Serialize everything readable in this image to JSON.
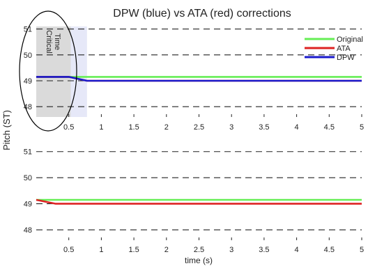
{
  "chart_data": [
    {
      "type": "line",
      "title": "DPW (blue) vs ATA (red) corrections",
      "ylabel_shared": "Pitch (ST)",
      "xlim": [
        0,
        5
      ],
      "ylim": [
        47.6,
        51.1
      ],
      "xticks": [
        0.5,
        1,
        1.5,
        2,
        2.5,
        3,
        3.5,
        4,
        4.5,
        5
      ],
      "xtick_labels": [
        "0.5",
        "1",
        "1.5",
        "2",
        "2.5",
        "3",
        "3.5",
        "4",
        "4.5",
        "5"
      ],
      "yticks": [
        48,
        49,
        50,
        51
      ],
      "ytick_labels": [
        "48",
        "49",
        "50",
        "51"
      ],
      "grid": "horizontal-dashed",
      "legend_position": "top-right",
      "annotation": {
        "text_line1": "Critical",
        "text_line2": "Time",
        "x_range": [
          0,
          0.78
        ]
      },
      "series": [
        {
          "name": "Original",
          "color": "#66ee55",
          "x": [
            0,
            5
          ],
          "y": [
            49.15,
            49.15
          ]
        },
        {
          "name": "ATA",
          "color": "#dd2222",
          "x": [
            0,
            0.5,
            0.78,
            5
          ],
          "y": [
            49.15,
            49.15,
            49.0,
            49.0
          ]
        },
        {
          "name": "DPW",
          "color": "#1a1acc",
          "x": [
            0,
            0.5,
            0.78,
            5
          ],
          "y": [
            49.15,
            49.15,
            49.0,
            49.0
          ]
        }
      ]
    },
    {
      "type": "line",
      "xlabel": "time (s)",
      "xlim": [
        0,
        5
      ],
      "ylim": [
        47.6,
        51.1
      ],
      "xticks": [
        0.5,
        1,
        1.5,
        2,
        2.5,
        3,
        3.5,
        4,
        4.5,
        5
      ],
      "xtick_labels": [
        "0.5",
        "1",
        "1.5",
        "2",
        "2.5",
        "3",
        "3.5",
        "4",
        "4.5",
        "5"
      ],
      "yticks": [
        48,
        49,
        50,
        51
      ],
      "ytick_labels": [
        "48",
        "49",
        "50",
        "51"
      ],
      "grid": "horizontal-dashed",
      "series": [
        {
          "color": "#66ee55",
          "x": [
            0,
            5
          ],
          "y": [
            49.15,
            49.15
          ]
        },
        {
          "color": "#dd2222",
          "x": [
            0,
            0.3,
            5
          ],
          "y": [
            49.15,
            49.0,
            49.0
          ]
        }
      ]
    }
  ]
}
